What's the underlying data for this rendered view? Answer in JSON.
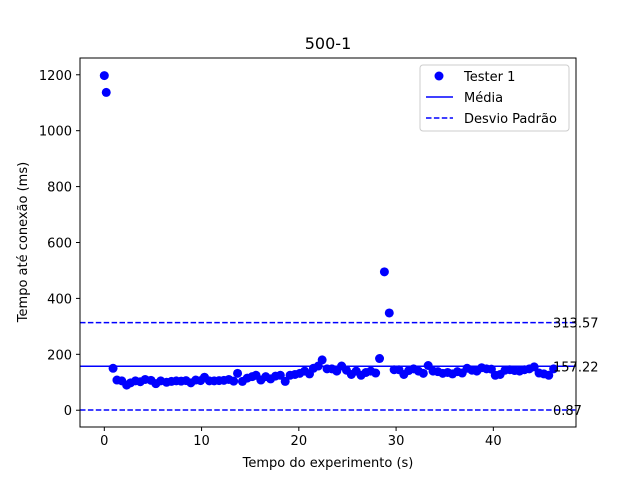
{
  "chart_data": {
    "type": "scatter",
    "title": "500-1",
    "xlabel": "Tempo do experimento (s)",
    "ylabel": "Tempo até conexão (ms)",
    "xlim": [
      -2.5,
      48.5
    ],
    "ylim": [
      -60,
      1260
    ],
    "xticks": [
      0,
      10,
      20,
      30,
      40
    ],
    "yticks": [
      0,
      200,
      400,
      600,
      800,
      1000,
      1200
    ],
    "grid": false,
    "legend_position": "top-right",
    "colors": {
      "series": "#0000ff",
      "axes": "#000000"
    },
    "series": [
      {
        "name": "Tester 1",
        "kind": "scatter",
        "points": [
          [
            0.0,
            1197
          ],
          [
            0.2,
            1137
          ],
          [
            0.9,
            150
          ],
          [
            1.3,
            108
          ],
          [
            1.8,
            105
          ],
          [
            2.3,
            90
          ],
          [
            2.7,
            98
          ],
          [
            3.2,
            105
          ],
          [
            3.7,
            102
          ],
          [
            4.2,
            110
          ],
          [
            4.8,
            107
          ],
          [
            5.3,
            95
          ],
          [
            5.8,
            105
          ],
          [
            6.4,
            100
          ],
          [
            6.9,
            103
          ],
          [
            7.4,
            105
          ],
          [
            7.9,
            104
          ],
          [
            8.4,
            106
          ],
          [
            8.9,
            98
          ],
          [
            9.4,
            108
          ],
          [
            9.9,
            106
          ],
          [
            10.3,
            118
          ],
          [
            10.8,
            105
          ],
          [
            11.3,
            105
          ],
          [
            11.8,
            106
          ],
          [
            12.3,
            107
          ],
          [
            12.8,
            110
          ],
          [
            13.3,
            104
          ],
          [
            13.7,
            132
          ],
          [
            14.2,
            103
          ],
          [
            14.7,
            115
          ],
          [
            15.2,
            120
          ],
          [
            15.6,
            125
          ],
          [
            16.1,
            108
          ],
          [
            16.6,
            120
          ],
          [
            17.1,
            112
          ],
          [
            17.6,
            122
          ],
          [
            18.1,
            125
          ],
          [
            18.6,
            103
          ],
          [
            19.1,
            125
          ],
          [
            19.6,
            128
          ],
          [
            20.1,
            132
          ],
          [
            20.6,
            140
          ],
          [
            21.1,
            130
          ],
          [
            21.5,
            150
          ],
          [
            22.0,
            158
          ],
          [
            22.4,
            180
          ],
          [
            22.9,
            148
          ],
          [
            23.4,
            148
          ],
          [
            23.9,
            140
          ],
          [
            24.4,
            158
          ],
          [
            24.9,
            143
          ],
          [
            25.4,
            128
          ],
          [
            25.9,
            140
          ],
          [
            26.4,
            125
          ],
          [
            26.9,
            135
          ],
          [
            27.4,
            140
          ],
          [
            27.9,
            133
          ],
          [
            28.3,
            185
          ],
          [
            28.8,
            495
          ],
          [
            29.3,
            348
          ],
          [
            29.8,
            145
          ],
          [
            30.3,
            145
          ],
          [
            30.8,
            128
          ],
          [
            31.3,
            142
          ],
          [
            31.8,
            148
          ],
          [
            32.3,
            140
          ],
          [
            32.8,
            132
          ],
          [
            33.3,
            160
          ],
          [
            33.8,
            140
          ],
          [
            34.3,
            138
          ],
          [
            34.8,
            132
          ],
          [
            35.3,
            135
          ],
          [
            35.8,
            130
          ],
          [
            36.3,
            138
          ],
          [
            36.8,
            133
          ],
          [
            37.3,
            150
          ],
          [
            37.8,
            143
          ],
          [
            38.3,
            140
          ],
          [
            38.8,
            152
          ],
          [
            39.3,
            148
          ],
          [
            39.8,
            147
          ],
          [
            40.2,
            125
          ],
          [
            40.7,
            128
          ],
          [
            41.2,
            143
          ],
          [
            41.7,
            145
          ],
          [
            42.2,
            142
          ],
          [
            42.7,
            140
          ],
          [
            43.2,
            145
          ],
          [
            43.7,
            148
          ],
          [
            44.2,
            155
          ],
          [
            44.7,
            133
          ],
          [
            45.2,
            130
          ],
          [
            45.7,
            125
          ],
          [
            46.2,
            148
          ]
        ]
      },
      {
        "name": "Média",
        "kind": "hline",
        "y": 157.22,
        "style": "solid"
      },
      {
        "name": "Desvio Padrão",
        "kind": "hline",
        "y": 313.57,
        "style": "dashed"
      },
      {
        "name": "Desvio Padrão",
        "kind": "hline",
        "y": 0.87,
        "style": "dashed",
        "legend": false
      }
    ],
    "annotations": [
      {
        "text": "313.57",
        "y": 313.57
      },
      {
        "text": "157.22",
        "y": 157.22
      },
      {
        "text": "0.87",
        "y": 0.87
      }
    ],
    "legend": [
      "Tester 1",
      "Média",
      "Desvio Padrão"
    ]
  }
}
